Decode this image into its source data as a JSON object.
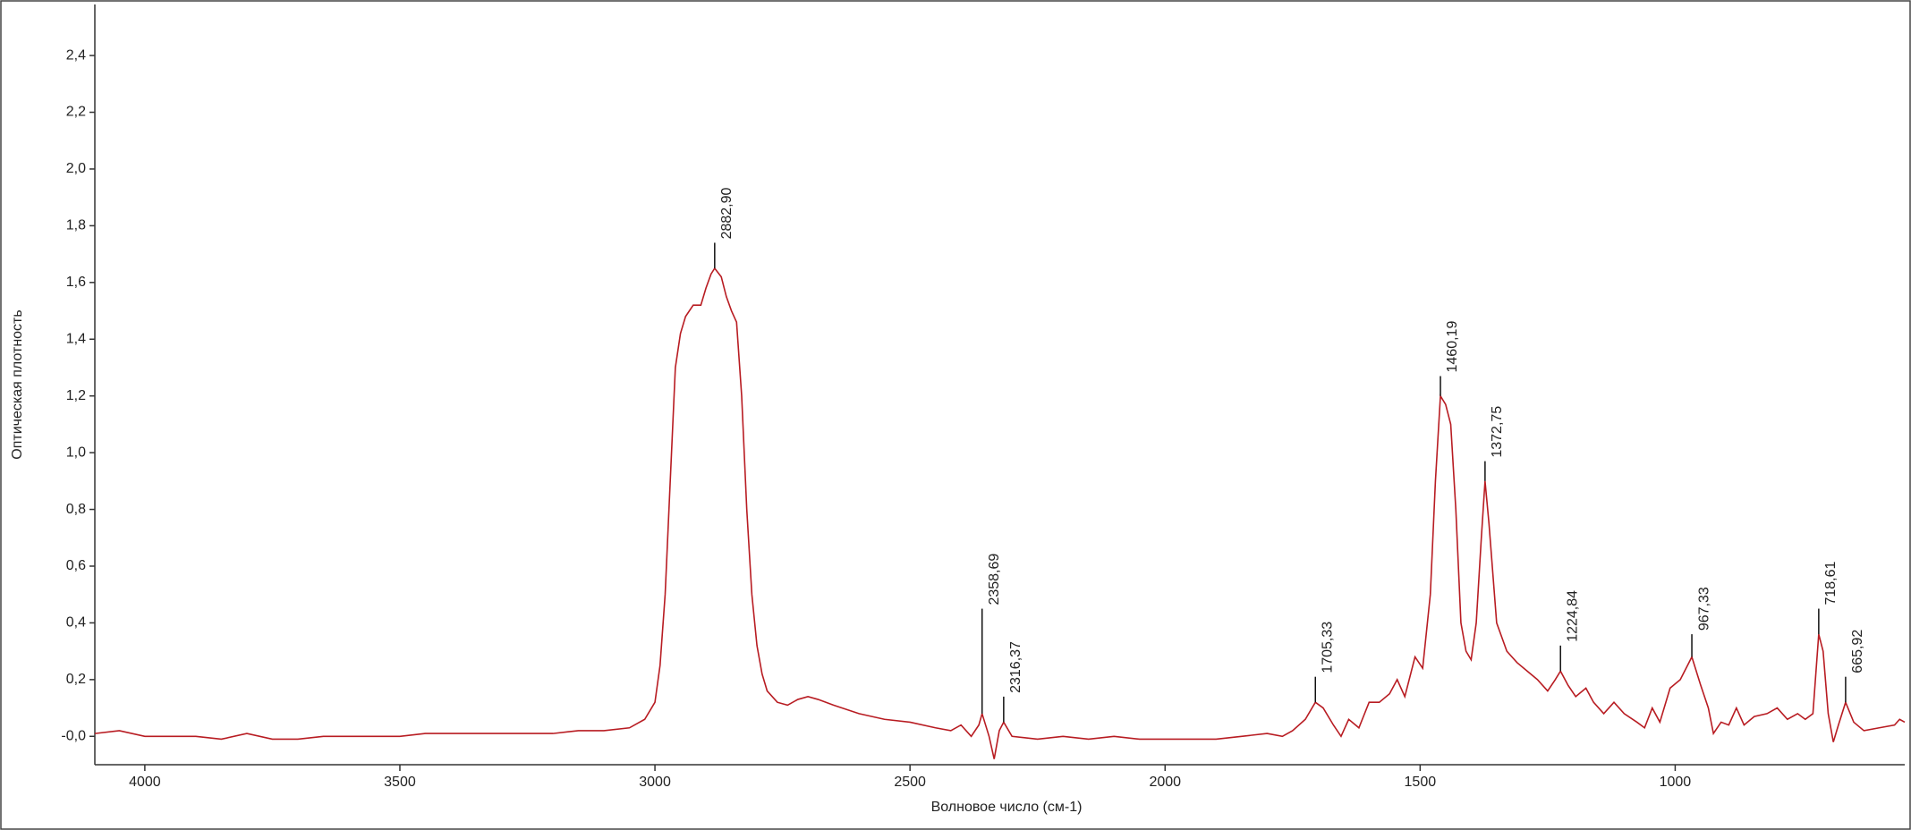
{
  "chart_data": {
    "type": "line",
    "xlabel": "Волновое число (см-1)",
    "ylabel": "Оптическая плотность",
    "xlim": [
      4098,
      550
    ],
    "xticks": [
      4000,
      3500,
      3000,
      2500,
      2000,
      1500,
      1000
    ],
    "ylim": [
      -0.1,
      2.58
    ],
    "yticks": [
      {
        "value": 0,
        "label": "-0,0"
      },
      {
        "value": 0.2,
        "label": "0,2"
      },
      {
        "value": 0.4,
        "label": "0,4"
      },
      {
        "value": 0.6,
        "label": "0,6"
      },
      {
        "value": 0.8,
        "label": "0,8"
      },
      {
        "value": 1.0,
        "label": "1,0"
      },
      {
        "value": 1.2,
        "label": "1,2"
      },
      {
        "value": 1.4,
        "label": "1,4"
      },
      {
        "value": 1.6,
        "label": "1,6"
      },
      {
        "value": 1.8,
        "label": "1,8"
      },
      {
        "value": 2.0,
        "label": "2,0"
      },
      {
        "value": 2.2,
        "label": "2,2"
      },
      {
        "value": 2.4,
        "label": "2,4"
      }
    ],
    "series": [
      {
        "color": "#b81c22",
        "x": [
          4098,
          4050,
          4000,
          3950,
          3900,
          3850,
          3800,
          3750,
          3700,
          3650,
          3600,
          3550,
          3500,
          3450,
          3400,
          3350,
          3300,
          3250,
          3200,
          3150,
          3100,
          3050,
          3020,
          3000,
          2990,
          2980,
          2970,
          2960,
          2950,
          2940,
          2925,
          2910,
          2900,
          2890,
          2882.9,
          2870,
          2860,
          2850,
          2840,
          2830,
          2820,
          2810,
          2800,
          2790,
          2780,
          2760,
          2740,
          2720,
          2700,
          2680,
          2650,
          2600,
          2550,
          2500,
          2450,
          2420,
          2400,
          2380,
          2365,
          2358.69,
          2345,
          2335,
          2325,
          2316.37,
          2300,
          2250,
          2200,
          2150,
          2100,
          2050,
          2000,
          1950,
          1900,
          1850,
          1800,
          1770,
          1750,
          1725,
          1705.33,
          1690,
          1670,
          1655,
          1640,
          1620,
          1600,
          1580,
          1560,
          1545,
          1530,
          1510,
          1495,
          1480,
          1470,
          1460.19,
          1450,
          1440,
          1430,
          1420,
          1410,
          1400,
          1390,
          1380,
          1372.75,
          1365,
          1350,
          1330,
          1310,
          1290,
          1270,
          1250,
          1235,
          1224.84,
          1210,
          1195,
          1175,
          1160,
          1140,
          1120,
          1100,
          1075,
          1060,
          1045,
          1030,
          1010,
          990,
          967.33,
          950,
          935,
          925,
          910,
          895,
          880,
          865,
          845,
          820,
          800,
          780,
          760,
          745,
          730,
          718.61,
          710,
          700,
          690,
          680,
          665.92,
          650,
          630,
          600,
          570,
          560,
          550
        ],
        "values": [
          0.01,
          0.02,
          0.0,
          0.0,
          0.0,
          -0.01,
          0.01,
          -0.01,
          -0.01,
          0.0,
          0.0,
          0.0,
          0.0,
          0.01,
          0.01,
          0.01,
          0.01,
          0.01,
          0.01,
          0.02,
          0.02,
          0.03,
          0.06,
          0.12,
          0.25,
          0.5,
          0.9,
          1.3,
          1.42,
          1.48,
          1.52,
          1.52,
          1.58,
          1.63,
          1.65,
          1.62,
          1.55,
          1.5,
          1.46,
          1.2,
          0.8,
          0.5,
          0.32,
          0.22,
          0.16,
          0.12,
          0.11,
          0.13,
          0.14,
          0.13,
          0.11,
          0.08,
          0.06,
          0.05,
          0.03,
          0.02,
          0.04,
          0.0,
          0.04,
          0.08,
          0.0,
          -0.08,
          0.02,
          0.05,
          0.0,
          -0.01,
          0.0,
          -0.01,
          0.0,
          -0.01,
          -0.01,
          -0.01,
          -0.01,
          0.0,
          0.01,
          0.0,
          0.02,
          0.06,
          0.12,
          0.1,
          0.04,
          0.0,
          0.06,
          0.03,
          0.12,
          0.12,
          0.15,
          0.2,
          0.14,
          0.28,
          0.24,
          0.5,
          0.9,
          1.2,
          1.17,
          1.1,
          0.8,
          0.4,
          0.3,
          0.27,
          0.4,
          0.7,
          0.9,
          0.75,
          0.4,
          0.3,
          0.26,
          0.23,
          0.2,
          0.16,
          0.2,
          0.23,
          0.18,
          0.14,
          0.17,
          0.12,
          0.08,
          0.12,
          0.08,
          0.05,
          0.03,
          0.1,
          0.05,
          0.17,
          0.2,
          0.28,
          0.18,
          0.1,
          0.01,
          0.05,
          0.04,
          0.1,
          0.04,
          0.07,
          0.08,
          0.1,
          0.06,
          0.08,
          0.06,
          0.08,
          0.36,
          0.3,
          0.08,
          -0.02,
          0.04,
          0.12,
          0.05,
          0.02,
          0.03,
          0.04,
          0.06,
          0.05
        ]
      }
    ],
    "peaks": [
      {
        "value": 2882.9,
        "label": "2882,90",
        "top": 1.74
      },
      {
        "value": 2358.69,
        "label": "2358,69",
        "top": 0.45
      },
      {
        "value": 2316.37,
        "label": "2316,37",
        "top": 0.14
      },
      {
        "value": 1705.33,
        "label": "1705,33",
        "top": 0.21
      },
      {
        "value": 1460.19,
        "label": "1460,19",
        "top": 1.27
      },
      {
        "value": 1372.75,
        "label": "1372,75",
        "top": 0.97
      },
      {
        "value": 1224.84,
        "label": "1224,84",
        "top": 0.32
      },
      {
        "value": 967.33,
        "label": "967,33",
        "top": 0.36
      },
      {
        "value": 718.61,
        "label": "718,61",
        "top": 0.45
      },
      {
        "value": 665.92,
        "label": "665,92",
        "top": 0.21
      }
    ]
  }
}
